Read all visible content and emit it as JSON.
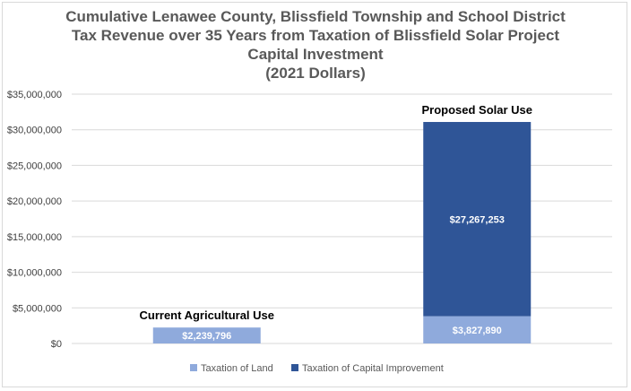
{
  "chart_data": {
    "type": "bar",
    "stacked": true,
    "title_lines": [
      "Cumulative Lenawee County, Blissfield Township and School District",
      "Tax Revenue over 35 Years from Taxation of Blissfield Solar Project",
      "Capital Investment",
      "(2021 Dollars)"
    ],
    "categories": [
      "Current Agricultural Use",
      "Proposed Solar Use"
    ],
    "series": [
      {
        "name": "Taxation of Land",
        "values": [
          2239796,
          3827890
        ],
        "labels": [
          "$2,239,796",
          "$3,827,890"
        ],
        "color": "#8faadc"
      },
      {
        "name": "Taxation of Capital Improvement",
        "values": [
          0,
          27267253
        ],
        "labels": [
          "",
          "$27,267,253"
        ],
        "color": "#2f5597"
      }
    ],
    "ylim": [
      0,
      35000000
    ],
    "yticks": [
      0,
      5000000,
      10000000,
      15000000,
      20000000,
      25000000,
      30000000,
      35000000
    ],
    "ytick_labels": [
      "$0",
      "$5,000,000",
      "$10,000,000",
      "$15,000,000",
      "$20,000,000",
      "$25,000,000",
      "$30,000,000",
      "$35,000,000"
    ],
    "grid": true,
    "legend": "bottom"
  }
}
